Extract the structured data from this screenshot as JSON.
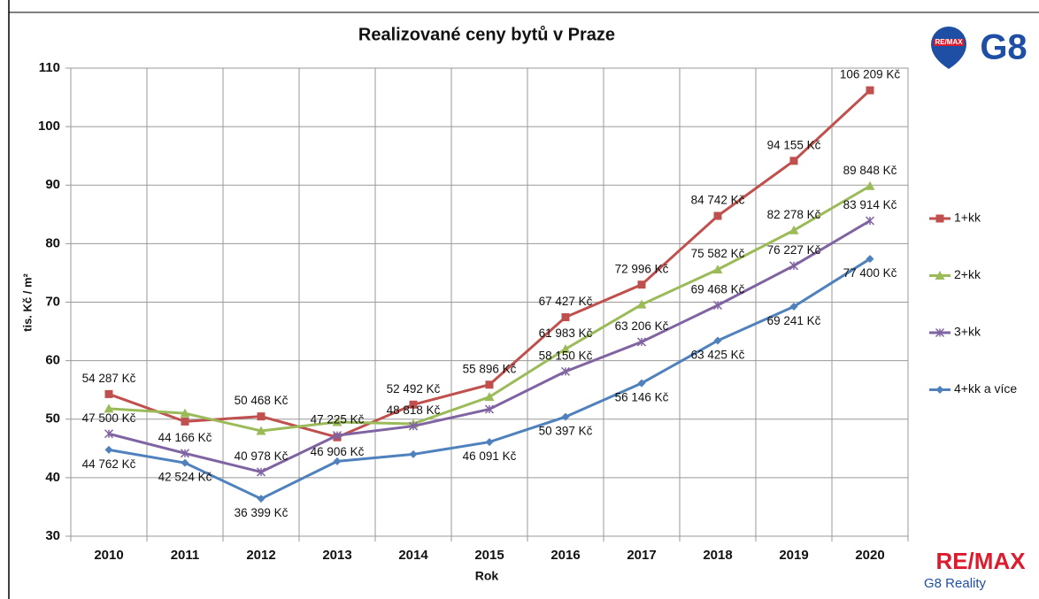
{
  "chart_data": {
    "type": "line",
    "title": "Realizované ceny bytů v Praze",
    "x_label": "Rok",
    "y_label": "tis. Kč / m²",
    "categories": [
      "2010",
      "2011",
      "2012",
      "2013",
      "2014",
      "2015",
      "2016",
      "2017",
      "2018",
      "2019",
      "2020"
    ],
    "ylim": [
      30,
      110
    ],
    "yticks": [
      30,
      40,
      50,
      60,
      70,
      80,
      90,
      100,
      110
    ],
    "grid": true,
    "legend": "right",
    "series": [
      {
        "name": "1+kk",
        "color": "#c0504d",
        "marker": "square",
        "values": [
          54.287,
          49.6,
          50.468,
          46.906,
          52.492,
          55.896,
          67.427,
          72.996,
          84.742,
          94.155,
          106.209
        ],
        "value_labels": [
          "54 287 Kč",
          null,
          "50 468 Kč",
          "46 906 Kč",
          "52 492 Kč",
          "55 896 Kč",
          "67 427 Kč",
          "72 996 Kč",
          "84 742 Kč",
          "94 155 Kč",
          "106 209 Kč"
        ]
      },
      {
        "name": "2+kk",
        "color": "#9bbb59",
        "marker": "triangle",
        "values": [
          51.8,
          51.0,
          48.0,
          49.5,
          49.2,
          53.8,
          61.983,
          69.6,
          75.582,
          82.278,
          89.848
        ],
        "value_labels": [
          null,
          null,
          null,
          null,
          null,
          null,
          "61 983 Kč",
          null,
          "75 582 Kč",
          "82 278 Kč",
          "89 848 Kč"
        ]
      },
      {
        "name": "3+kk",
        "color": "#8064a2",
        "marker": "x",
        "values": [
          47.5,
          44.166,
          40.978,
          47.225,
          48.818,
          51.7,
          58.15,
          63.206,
          69.468,
          76.227,
          83.914
        ],
        "value_labels": [
          "47 500 Kč",
          "44 166 Kč",
          "40 978 Kč",
          "47 225 Kč",
          "48 818 Kč",
          null,
          "58 150 Kč",
          "63 206 Kč",
          "69 468 Kč",
          "76 227 Kč",
          "83 914 Kč"
        ]
      },
      {
        "name": "4+kk a více",
        "color": "#4f81bd",
        "marker": "diamond",
        "values": [
          44.762,
          42.524,
          36.399,
          42.8,
          44.0,
          46.091,
          50.397,
          56.146,
          63.425,
          69.241,
          77.4
        ],
        "value_labels": [
          "44 762 Kč",
          "42 524 Kč",
          "36 399 Kč",
          null,
          null,
          "46 091 Kč",
          "50 397 Kč",
          "56 146 Kč",
          "63 425 Kč",
          "69 241 Kč",
          "77 400 Kč"
        ]
      }
    ]
  },
  "logos": {
    "top_brand": "RE/MAX",
    "top_name": "G8",
    "bottom_brand": "RE/MAX",
    "bottom_name": "G8 Reality"
  }
}
